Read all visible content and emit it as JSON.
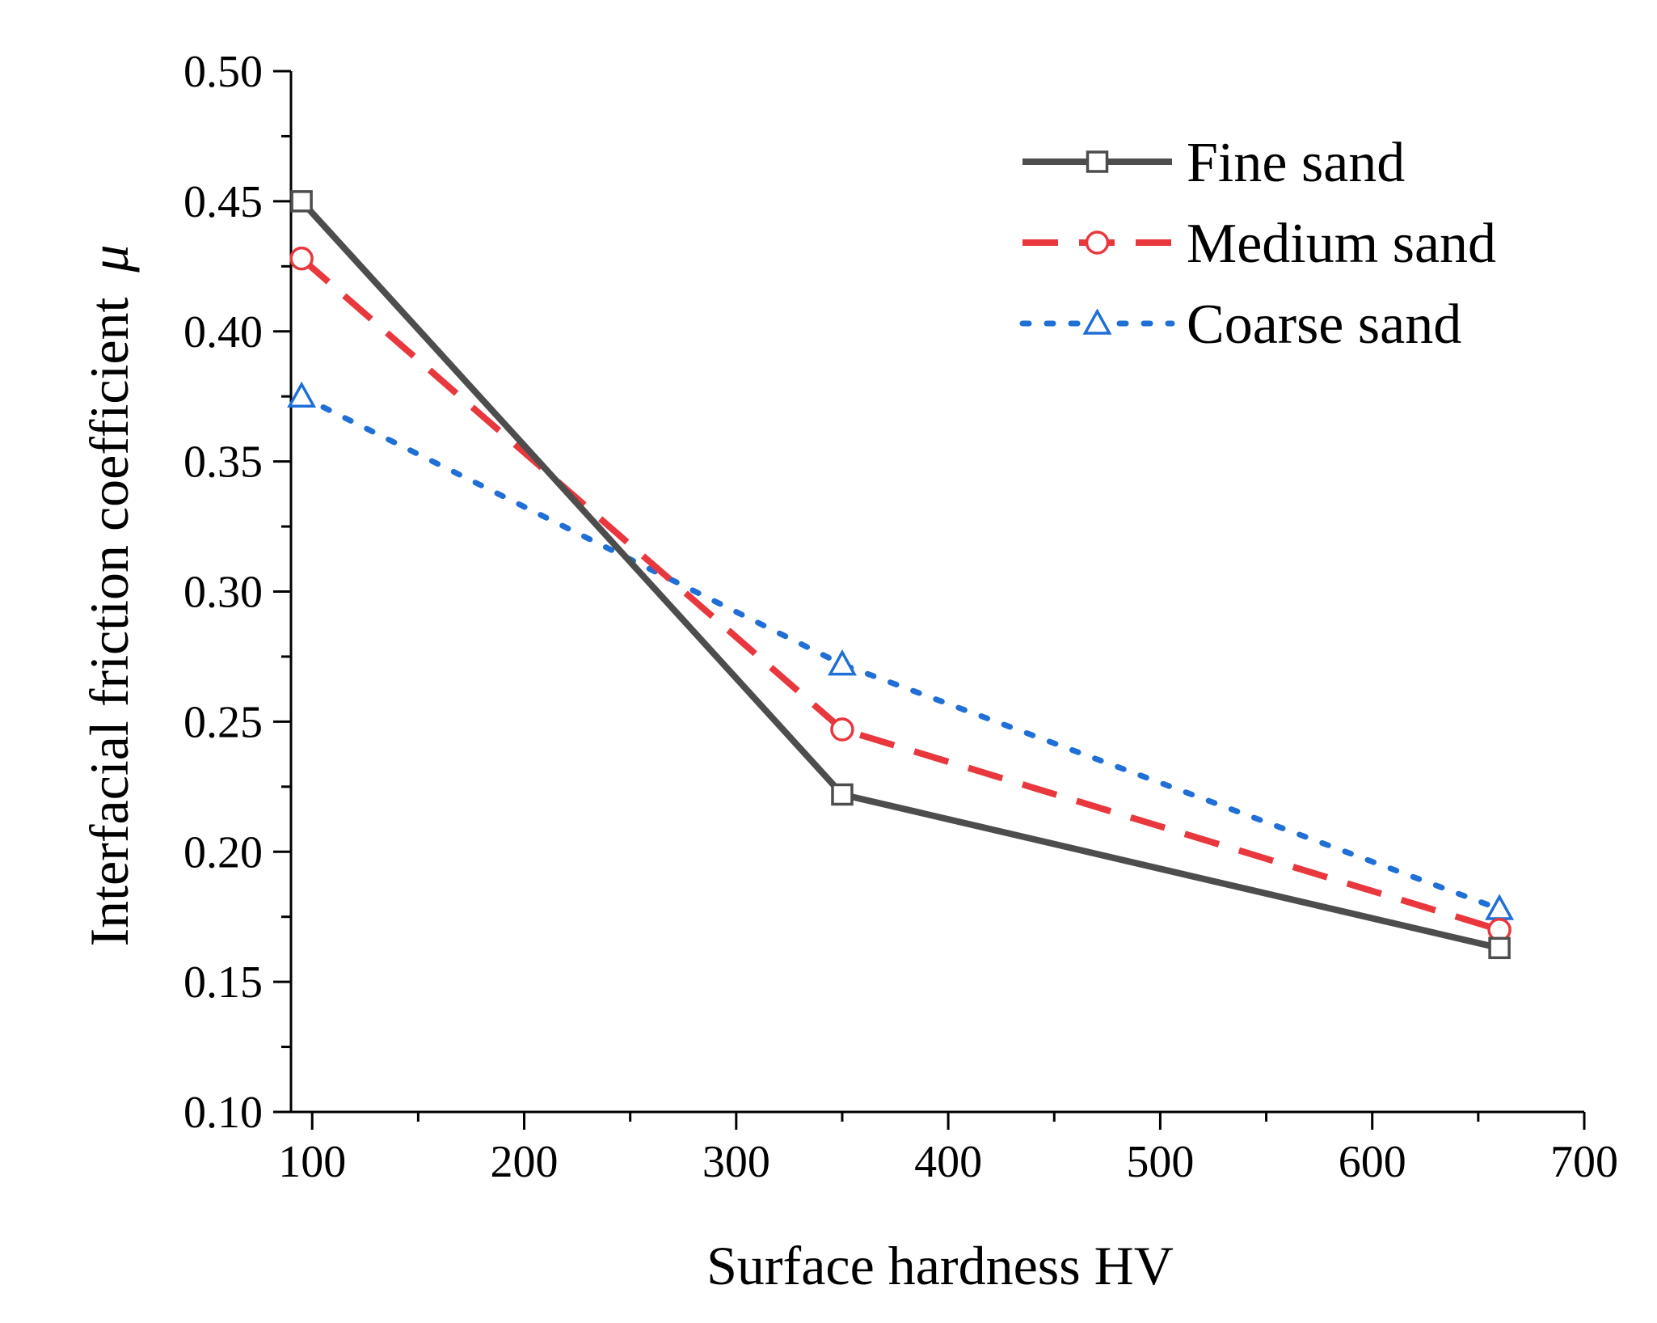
{
  "chart_data": {
    "type": "line",
    "title": "",
    "xlabel": "Surface hardness HV",
    "ylabel": "Interfacial friction coefficient",
    "ylabel_symbol": "μ",
    "xlim": [
      90,
      700
    ],
    "ylim": [
      0.1,
      0.5
    ],
    "xticks": [
      100,
      200,
      300,
      400,
      500,
      600,
      700
    ],
    "yticks": [
      "0.10",
      "0.15",
      "0.20",
      "0.25",
      "0.30",
      "0.35",
      "0.40",
      "0.45",
      "0.50"
    ],
    "x": [
      95,
      350,
      660
    ],
    "series": [
      {
        "name": "Fine sand",
        "values": [
          0.45,
          0.222,
          0.163
        ],
        "color": "#4d4d4d",
        "style": "solid",
        "marker": "square"
      },
      {
        "name": "Medium sand",
        "values": [
          0.428,
          0.247,
          0.17
        ],
        "color": "#e8383d",
        "style": "dashed",
        "marker": "circle"
      },
      {
        "name": "Coarse sand",
        "values": [
          0.375,
          0.272,
          0.178
        ],
        "color": "#1f6fd6",
        "style": "dotted",
        "marker": "triangle"
      }
    ],
    "legend": "top-right"
  }
}
